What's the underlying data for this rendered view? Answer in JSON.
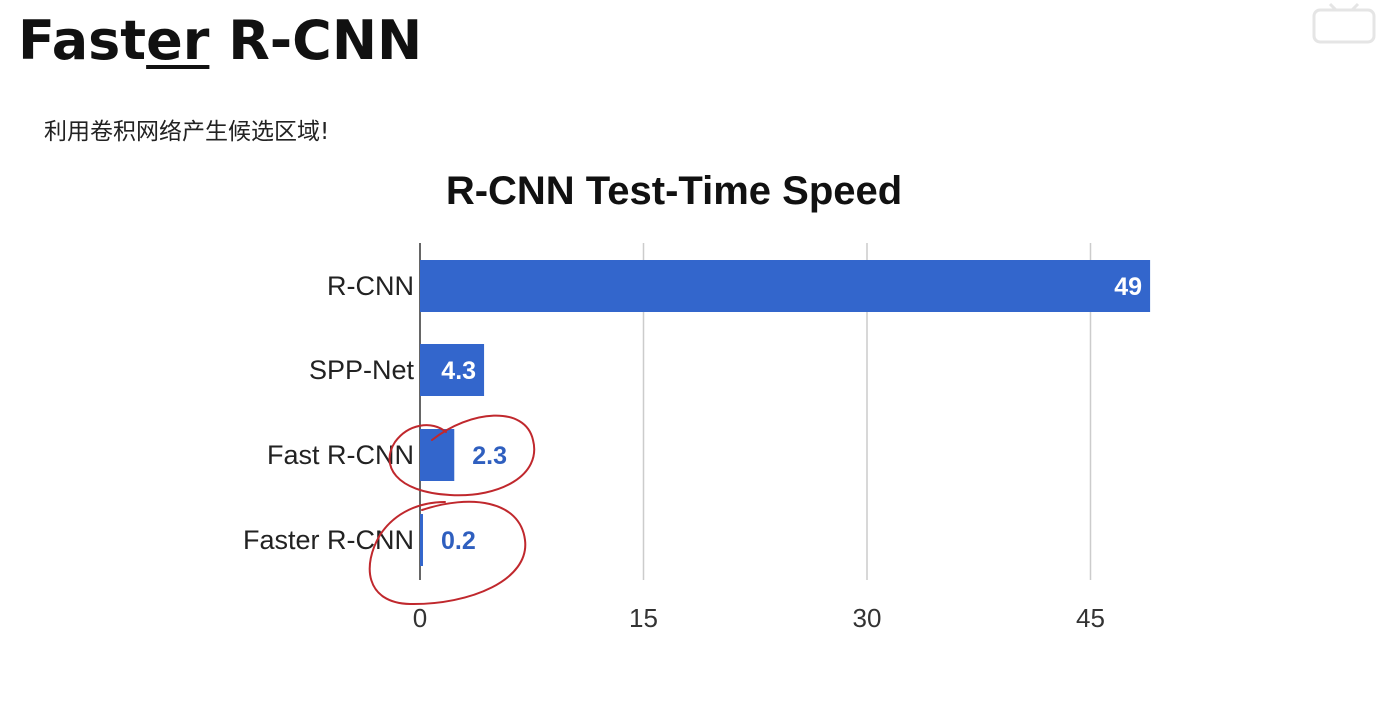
{
  "slide": {
    "title_part1": "Fast",
    "title_part2": "er",
    "title_part3": " R-CNN",
    "subtitle": "利用卷积网络产生候选区域!"
  },
  "colors": {
    "bar": "#3366cc",
    "annotation": "#c0282d",
    "grid": "#cccccc"
  },
  "chart_data": {
    "type": "bar",
    "orientation": "horizontal",
    "title": "R-CNN Test-Time Speed",
    "categories": [
      "R-CNN",
      "SPP-Net",
      "Fast R-CNN",
      "Faster R-CNN"
    ],
    "values": [
      49,
      4.3,
      2.3,
      0.2
    ],
    "value_labels": [
      "49",
      "4.3",
      "2.3",
      "0.2"
    ],
    "xlim": [
      0,
      55
    ],
    "xticks": [
      0,
      15,
      30,
      45
    ],
    "xtick_labels": [
      "0",
      "15",
      "30",
      "45"
    ],
    "grid": true,
    "annotations": [
      "hand-drawn red circles around Fast R-CNN and Faster R-CNN"
    ]
  }
}
